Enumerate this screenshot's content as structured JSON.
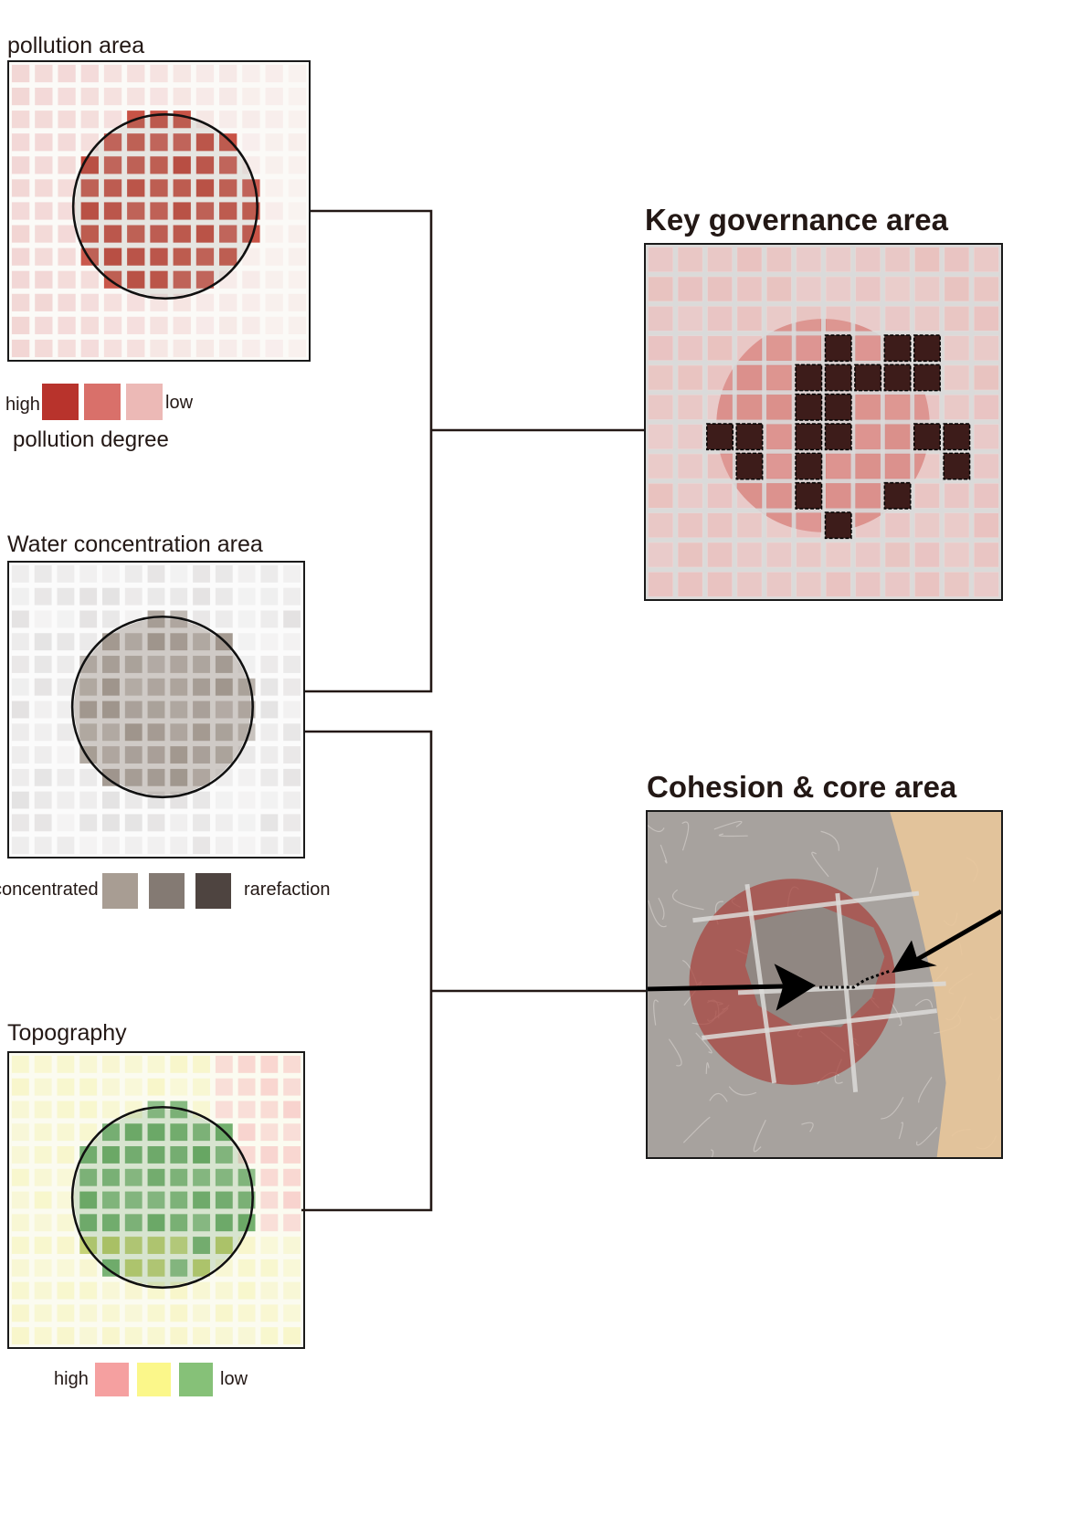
{
  "panels": {
    "pollution": {
      "title": "pollution area",
      "legend": {
        "high_label": "high",
        "low_label": "low",
        "caption": "pollution degree",
        "colors": [
          "#b8332c",
          "#d9706a",
          "#ecb9b6"
        ]
      }
    },
    "water": {
      "title": "Water concentration area",
      "legend": {
        "left_label": "concentrated",
        "right_label": "rarefaction",
        "colors": [
          "#a89d93",
          "#847a73",
          "#4e4440"
        ]
      }
    },
    "topography": {
      "title": "Topography",
      "legend": {
        "high_label": "high",
        "low_label": "low",
        "colors": [
          "#f5a0a0",
          "#fbf78a",
          "#86c178"
        ]
      }
    },
    "key_governance": {
      "title": "Key governance area"
    },
    "cohesion": {
      "title": "Cohesion & core area"
    }
  },
  "colors": {
    "pollution_cell": "#c0392b",
    "key_cell_dark": "#3d1c1a",
    "circle_stroke": "#111111",
    "connector": "#231815",
    "sand": "#e9c79a"
  }
}
